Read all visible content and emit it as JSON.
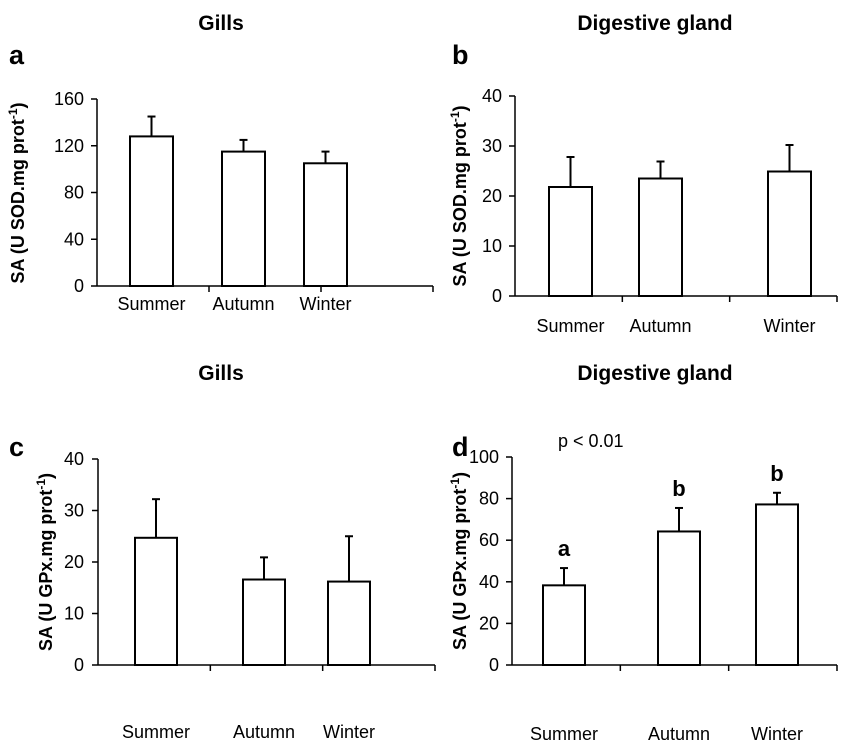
{
  "chart_data": [
    {
      "type": "bar",
      "panel": "a",
      "title": "Gills",
      "ylabel": {
        "main": "SA (U SOD.mg prot",
        "sup": "-1",
        "close": ")"
      },
      "categories": [
        "Summer",
        "Autumn",
        "Winter"
      ],
      "values": [
        128,
        115,
        105
      ],
      "errors": [
        17,
        10,
        10
      ],
      "ylim": [
        0,
        160
      ],
      "yticks": [
        "0",
        "40",
        "80",
        "120",
        "160"
      ],
      "annotation": "",
      "sig_letters": []
    },
    {
      "type": "bar",
      "panel": "b",
      "title": "Digestive gland",
      "ylabel": {
        "main": "SA (U SOD.mg prot",
        "sup": "-1",
        "close": ")"
      },
      "categories": [
        "Summer",
        "Autumn",
        "Winter"
      ],
      "values": [
        21.8,
        23.5,
        24.9
      ],
      "errors": [
        6.0,
        3.4,
        5.3
      ],
      "ylim": [
        0,
        40
      ],
      "yticks": [
        "0",
        "10",
        "20",
        "30",
        "40"
      ],
      "annotation": "",
      "sig_letters": []
    },
    {
      "type": "bar",
      "panel": "c",
      "title": "Gills",
      "ylabel": {
        "main": "SA (U GPx.mg prot",
        "sup": "-1",
        "close": ")"
      },
      "categories": [
        "Summer",
        "Autumn",
        "Winter"
      ],
      "values": [
        24.7,
        16.6,
        16.2
      ],
      "errors": [
        7.5,
        4.3,
        8.8
      ],
      "ylim": [
        0,
        40
      ],
      "yticks": [
        "0",
        "10",
        "20",
        "30",
        "40"
      ],
      "annotation": "",
      "sig_letters": []
    },
    {
      "type": "bar",
      "panel": "d",
      "title": "Digestive gland",
      "ylabel": {
        "main": "SA (U GPx.mg prot",
        "sup": "-1",
        "close": ")"
      },
      "categories": [
        "Summer",
        "Autumn",
        "Winter"
      ],
      "values": [
        38.3,
        64.2,
        77.2
      ],
      "errors": [
        8.3,
        11.3,
        5.6
      ],
      "ylim": [
        0,
        100
      ],
      "yticks": [
        "0",
        "20",
        "40",
        "60",
        "80",
        "100"
      ],
      "annotation": "p < 0.01",
      "sig_letters": [
        "a",
        "b",
        "b"
      ]
    }
  ]
}
